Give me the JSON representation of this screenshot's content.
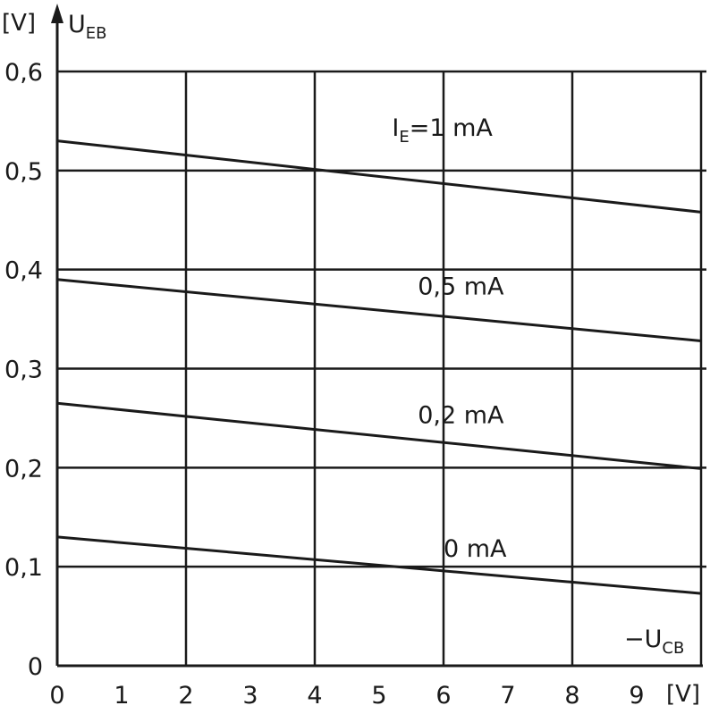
{
  "chart_data": {
    "type": "line",
    "title": "",
    "ylabel": {
      "unit": "[V]",
      "symbol": "U",
      "subscript": "EB"
    },
    "xlabel": {
      "sign": "−",
      "symbol": "U",
      "subscript": "CB",
      "unit": "[V]"
    },
    "xlim": [
      0,
      10
    ],
    "ylim": [
      0,
      0.6
    ],
    "grid": true,
    "x_grid_lines": [
      0,
      2,
      4,
      6,
      8,
      10
    ],
    "x_tick_labels": [
      "0",
      "1",
      "2",
      "3",
      "4",
      "5",
      "6",
      "7",
      "8",
      "9"
    ],
    "y_tick_labels": [
      {
        "value": 0.6,
        "text": "0,6"
      },
      {
        "value": 0.5,
        "text": "0,5"
      },
      {
        "value": 0.4,
        "text": "0,4"
      },
      {
        "value": 0.3,
        "text": "0,3"
      },
      {
        "value": 0.2,
        "text": "0,2"
      },
      {
        "value": 0.1,
        "text": "0,1"
      },
      {
        "value": 0.0,
        "text": "0"
      }
    ],
    "series": [
      {
        "label": "I_E = 1 mA",
        "label_parts": {
          "symbol": "I",
          "subscript": "E",
          "rest": "=1 mA"
        },
        "x": [
          0,
          10
        ],
        "y": [
          0.53,
          0.458
        ],
        "label_at": [
          5.2,
          0.535
        ]
      },
      {
        "label": "0,5 mA",
        "x": [
          0,
          10
        ],
        "y": [
          0.39,
          0.328
        ],
        "label_at": [
          5.6,
          0.375
        ]
      },
      {
        "label": "0,2 mA",
        "x": [
          0,
          10
        ],
        "y": [
          0.265,
          0.199
        ],
        "label_at": [
          5.6,
          0.245
        ]
      },
      {
        "label": "0 mA",
        "x": [
          0,
          10
        ],
        "y": [
          0.13,
          0.073
        ],
        "label_at": [
          6.0,
          0.11
        ]
      }
    ]
  }
}
